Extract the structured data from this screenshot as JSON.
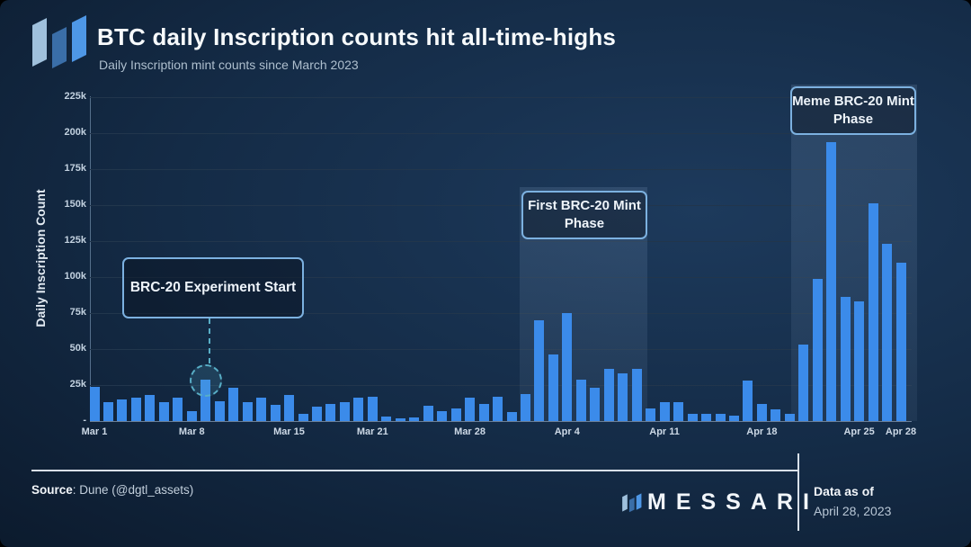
{
  "header": {
    "title": "BTC daily Inscription counts hit all-time-highs",
    "subtitle": "Daily Inscription mint counts since March 2023",
    "logo": "messari-logo"
  },
  "chart_data": {
    "type": "bar",
    "title": "BTC daily Inscription counts hit all-time-highs",
    "subtitle": "Daily Inscription mint counts since March 2023",
    "xlabel": "",
    "ylabel": "Daily Inscription Count",
    "ylim": [
      0,
      225000
    ],
    "grid": true,
    "bar_color": "#3b8bea",
    "y_ticks": [
      {
        "value": 0,
        "label": "-"
      },
      {
        "value": 25000,
        "label": "25k"
      },
      {
        "value": 50000,
        "label": "50k"
      },
      {
        "value": 75000,
        "label": "75k"
      },
      {
        "value": 100000,
        "label": "100k"
      },
      {
        "value": 125000,
        "label": "125k"
      },
      {
        "value": 150000,
        "label": "150k"
      },
      {
        "value": 175000,
        "label": "175k"
      },
      {
        "value": 200000,
        "label": "200k"
      },
      {
        "value": 225000,
        "label": "225k"
      }
    ],
    "x_ticks": [
      {
        "label": "Mar 1",
        "index": 0
      },
      {
        "label": "Mar 8",
        "index": 7
      },
      {
        "label": "Mar 15",
        "index": 14
      },
      {
        "label": "Mar 21",
        "index": 20
      },
      {
        "label": "Mar 28",
        "index": 27
      },
      {
        "label": "Apr 4",
        "index": 34
      },
      {
        "label": "Apr 11",
        "index": 41
      },
      {
        "label": "Apr 18",
        "index": 48
      },
      {
        "label": "Apr 25",
        "index": 55
      },
      {
        "label": "Apr 28",
        "index": 58
      }
    ],
    "categories": [
      "Mar 1",
      "Mar 2",
      "Mar 3",
      "Mar 4",
      "Mar 5",
      "Mar 6",
      "Mar 7",
      "Mar 8",
      "Mar 9",
      "Mar 10",
      "Mar 11",
      "Mar 12",
      "Mar 13",
      "Mar 14",
      "Mar 15",
      "Mar 16",
      "Mar 17",
      "Mar 18",
      "Mar 19",
      "Mar 20",
      "Mar 21",
      "Mar 22",
      "Mar 23",
      "Mar 24",
      "Mar 25",
      "Mar 26",
      "Mar 27",
      "Mar 28",
      "Mar 29",
      "Mar 30",
      "Mar 31",
      "Apr 1",
      "Apr 2",
      "Apr 3",
      "Apr 4",
      "Apr 5",
      "Apr 6",
      "Apr 7",
      "Apr 8",
      "Apr 9",
      "Apr 10",
      "Apr 11",
      "Apr 12",
      "Apr 13",
      "Apr 14",
      "Apr 15",
      "Apr 16",
      "Apr 17",
      "Apr 18",
      "Apr 19",
      "Apr 20",
      "Apr 21",
      "Apr 22",
      "Apr 23",
      "Apr 24",
      "Apr 25",
      "Apr 26",
      "Apr 27",
      "Apr 28"
    ],
    "values": [
      24000,
      13000,
      15000,
      16000,
      18000,
      13000,
      16000,
      7000,
      29000,
      14000,
      23000,
      13000,
      16000,
      11000,
      18000,
      5000,
      10000,
      12000,
      13000,
      16000,
      17000,
      3000,
      2000,
      2500,
      10500,
      7000,
      9000,
      16000,
      12000,
      17000,
      6000,
      19000,
      70000,
      46000,
      75000,
      29000,
      23000,
      36000,
      33000,
      36000,
      9000,
      13000,
      13000,
      5000,
      5000,
      5000,
      4000,
      28000,
      12000,
      8000,
      5000,
      53000,
      99000,
      194000,
      86000,
      83000,
      151000,
      123000,
      110000
    ],
    "annotations": [
      {
        "label": "BRC-20 Experiment Start",
        "target_date": "Mar 9",
        "marker": "dashed-circle"
      },
      {
        "label": "First BRC-20 Mint Phase",
        "band": [
          "Apr 1",
          "Apr 10"
        ]
      },
      {
        "label": "Meme BRC-20 Mint Phase",
        "band": [
          "Apr 20",
          "Apr 28"
        ]
      }
    ],
    "legend_position": "none"
  },
  "colors": {
    "bar": "#3b8bea",
    "annotation_border": "#7cb1e0",
    "connector": "#58aec6",
    "band": "rgba(152,182,218,0.12)",
    "background_dark": "#0c1b2e",
    "logo_light": "#9fc0dc",
    "logo_mid": "#3a6ea8",
    "logo_bright": "#4e97e6"
  },
  "footer": {
    "source_label": "Source",
    "source_rest": ": Dune (@dgtl_assets)",
    "brand": "MESSARI",
    "data_as_of_label": "Data as of",
    "data_as_of_value": "April 28, 2023"
  }
}
